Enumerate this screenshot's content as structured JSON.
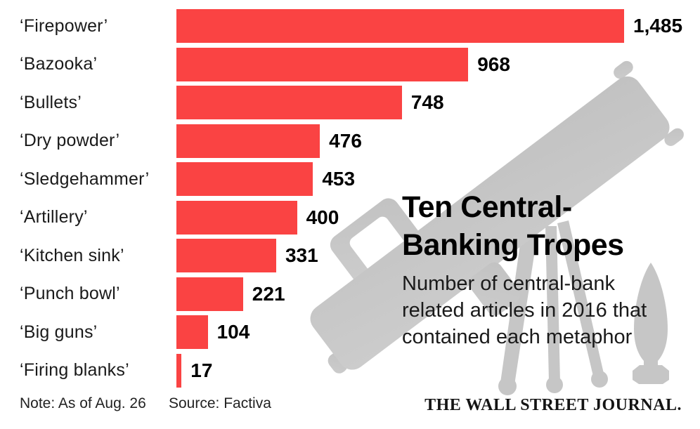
{
  "chart_data": {
    "type": "bar",
    "orientation": "horizontal",
    "title": "Ten Central-Banking Tropes",
    "title_lines": [
      "Ten Central-",
      "Banking Tropes"
    ],
    "subtitle": "Number of central-bank related articles in 2016 that contained each metaphor",
    "subtitle_lines": [
      "Number of central-bank",
      "related articles in 2016 that",
      "contained each metaphor"
    ],
    "categories": [
      "‘Firepower’",
      "‘Bazooka’",
      "‘Bullets’",
      "‘Dry powder’",
      "‘Sledgehammer’",
      "‘Artillery’",
      "‘Kitchen sink’",
      "‘Punch bowl’",
      "‘Big guns’",
      "‘Firing blanks’"
    ],
    "values": [
      1485,
      968,
      748,
      476,
      453,
      400,
      331,
      221,
      104,
      17
    ],
    "value_labels": [
      "1,485",
      "968",
      "748",
      "476",
      "453",
      "400",
      "331",
      "221",
      "104",
      "17"
    ],
    "xlim": [
      0,
      1485
    ],
    "grid": false,
    "legend": "none",
    "data_labels": "end-of-bar",
    "bar_color": "#fa4343",
    "watermark": {
      "icons": [
        "bazooka-icon",
        "tripod-icon",
        "artillery-shell-icon"
      ],
      "color": "#c6c6c6"
    }
  },
  "footer": {
    "note": "Note: As of Aug. 26",
    "source": "Source: Factiva",
    "branding": "THE WALL STREET JOURNAL."
  }
}
